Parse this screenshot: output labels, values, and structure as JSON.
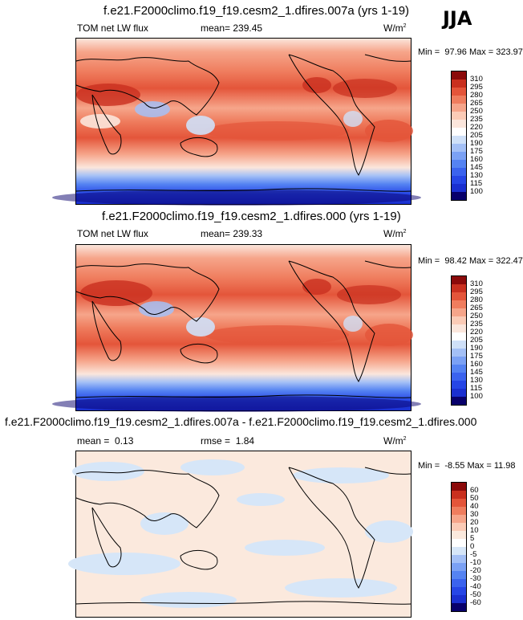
{
  "season": "JJA",
  "panels": [
    {
      "title": "f.e21.F2000climo.f19_f19.cesm2_1.dfires.007a (yrs 1-19)",
      "variable": "TOM net LW flux",
      "mean_label": "mean=",
      "mean_value": "239.45",
      "units": "W/m",
      "units_sup": "2",
      "min_label": "Min =",
      "min_value": "97.96",
      "max_label": "Max =",
      "max_value": "323.97",
      "colorbar": [
        "310",
        "295",
        "280",
        "265",
        "250",
        "235",
        "220",
        "205",
        "190",
        "175",
        "160",
        "145",
        "130",
        "115",
        "100"
      ]
    },
    {
      "title": "f.e21.F2000climo.f19_f19.cesm2_1.dfires.000 (yrs 1-19)",
      "variable": "TOM net LW flux",
      "mean_label": "mean=",
      "mean_value": "239.33",
      "units": "W/m",
      "units_sup": "2",
      "min_label": "Min =",
      "min_value": "98.42",
      "max_label": "Max =",
      "max_value": "322.47",
      "colorbar": [
        "310",
        "295",
        "280",
        "265",
        "250",
        "235",
        "220",
        "205",
        "190",
        "175",
        "160",
        "145",
        "130",
        "115",
        "100"
      ]
    },
    {
      "title": "f.e21.F2000climo.f19_f19.cesm2_1.dfires.007a - f.e21.F2000climo.f19_f19.cesm2_1.dfires.000",
      "mean_label": "mean =",
      "mean_value": "0.13",
      "rmse_label": "rmse =",
      "rmse_value": "1.84",
      "units": "W/m",
      "units_sup": "2",
      "min_label": "Min =",
      "min_value": "-8.55",
      "max_label": "Max =",
      "max_value": "11.98",
      "colorbar": [
        "60",
        "50",
        "40",
        "30",
        "20",
        "10",
        "5",
        "0",
        "-5",
        "-10",
        "-20",
        "-30",
        "-40",
        "-50",
        "-60"
      ]
    }
  ],
  "chart_data": [
    {
      "type": "heatmap",
      "title": "f.e21.F2000climo.f19_f19.cesm2_1.dfires.007a (yrs 1-19)",
      "variable": "TOM net LW flux",
      "units": "W/m2",
      "mean": 239.45,
      "min": 97.96,
      "max": 323.97,
      "levels": [
        100,
        115,
        130,
        145,
        160,
        175,
        190,
        205,
        220,
        235,
        250,
        265,
        280,
        295,
        310
      ],
      "colors": [
        "#08006b",
        "#1a2fd0",
        "#2646e6",
        "#3b63ee",
        "#5583f2",
        "#7ba1f4",
        "#a4c0f6",
        "#cfe0f8",
        "#fbe6dc",
        "#fbcbb6",
        "#f6a58a",
        "#ef7d5e",
        "#e4553a",
        "#c9301f",
        "#8b0a0a"
      ]
    },
    {
      "type": "heatmap",
      "title": "f.e21.F2000climo.f19_f19.cesm2_1.dfires.000 (yrs 1-19)",
      "variable": "TOM net LW flux",
      "units": "W/m2",
      "mean": 239.33,
      "min": 98.42,
      "max": 322.47,
      "levels": [
        100,
        115,
        130,
        145,
        160,
        175,
        190,
        205,
        220,
        235,
        250,
        265,
        280,
        295,
        310
      ],
      "colors": [
        "#08006b",
        "#1a2fd0",
        "#2646e6",
        "#3b63ee",
        "#5583f2",
        "#7ba1f4",
        "#a4c0f6",
        "#cfe0f8",
        "#fbe6dc",
        "#fbcbb6",
        "#f6a58a",
        "#ef7d5e",
        "#e4553a",
        "#c9301f",
        "#8b0a0a"
      ]
    },
    {
      "type": "heatmap",
      "title": "f.e21.F2000climo.f19_f19.cesm2_1.dfires.007a - f.e21.F2000climo.f19_f19.cesm2_1.dfires.000",
      "units": "W/m2",
      "mean": 0.13,
      "rmse": 1.84,
      "min": -8.55,
      "max": 11.98,
      "levels": [
        -60,
        -50,
        -40,
        -30,
        -20,
        -10,
        -5,
        0,
        5,
        10,
        20,
        30,
        40,
        50,
        60
      ],
      "colors": [
        "#08006b",
        "#1a2fd0",
        "#2646e6",
        "#3b63ee",
        "#5583f2",
        "#7ba1f4",
        "#a4c0f6",
        "#d6e6f8",
        "#fbe9dd",
        "#fbcbb6",
        "#f6a58a",
        "#ef7d5e",
        "#e4553a",
        "#c9301f",
        "#8b0a0a"
      ]
    }
  ]
}
